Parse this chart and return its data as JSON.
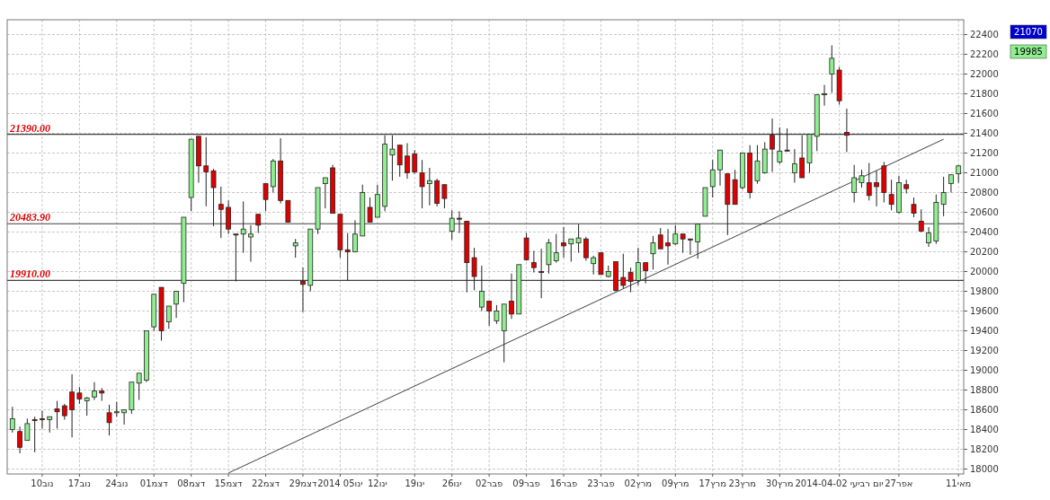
{
  "chart_data": {
    "type": "candlestick",
    "categories": [
      null,
      null,
      null,
      null,
      "10נוב",
      null,
      null,
      null,
      null,
      "17נוב",
      null,
      null,
      null,
      null,
      "24נוב",
      null,
      null,
      null,
      null,
      "01דצמ",
      null,
      null,
      null,
      null,
      "08דצמ",
      null,
      null,
      null,
      null,
      "15דצמ",
      null,
      null,
      null,
      null,
      "22דצמ",
      null,
      null,
      null,
      null,
      "29דצמ",
      null,
      null,
      null,
      null,
      "2014 05ינו",
      null,
      null,
      null,
      null,
      "12ינו",
      null,
      null,
      null,
      null,
      "19ינו",
      null,
      null,
      null,
      null,
      "26ינו",
      null,
      null,
      null,
      null,
      "02פבר",
      null,
      null,
      null,
      null,
      "09פבר",
      null,
      null,
      null,
      null,
      "16פבר",
      null,
      null,
      null,
      null,
      "23פבר",
      null,
      null,
      null,
      null,
      "02מרץ",
      null,
      null,
      null,
      null,
      "09מרץ",
      null,
      null,
      null,
      null,
      "17מרץ",
      null,
      null,
      null,
      "23מרץ",
      null,
      null,
      null,
      null,
      "30מרץ",
      null,
      null,
      null,
      null,
      null,
      null,
      null,
      "2014-04-02 יום רביעי",
      null,
      null,
      null,
      null,
      null,
      null,
      null,
      "27אפר",
      null,
      null,
      null,
      null,
      null,
      null,
      null,
      "11מאי"
    ],
    "ohlc": [
      [
        18400,
        18630,
        18370,
        18510
      ],
      [
        18380,
        18430,
        18160,
        18220
      ],
      [
        18290,
        18510,
        18290,
        18460
      ],
      [
        18500,
        18530,
        18170,
        18490
      ],
      [
        18510,
        18590,
        18410,
        18500
      ],
      [
        18500,
        18530,
        18370,
        18530
      ],
      [
        18610,
        18690,
        18410,
        18580
      ],
      [
        18640,
        18660,
        18500,
        18540
      ],
      [
        18780,
        18960,
        18320,
        18600
      ],
      [
        18770,
        18830,
        18660,
        18710
      ],
      [
        18690,
        18730,
        18540,
        18720
      ],
      [
        18730,
        18880,
        18700,
        18790
      ],
      [
        18790,
        18820,
        18690,
        18770
      ],
      [
        18570,
        18650,
        18340,
        18470
      ],
      [
        18570,
        18680,
        18530,
        18580
      ],
      [
        18570,
        18600,
        18450,
        18600
      ],
      [
        18600,
        18880,
        18560,
        18880
      ],
      [
        18870,
        18970,
        18700,
        18970
      ],
      [
        18900,
        19400,
        18880,
        19400
      ],
      [
        19440,
        19770,
        19400,
        19770
      ],
      [
        19840,
        19840,
        19300,
        19400
      ],
      [
        19490,
        19650,
        19420,
        19650
      ],
      [
        19670,
        19800,
        19530,
        19800
      ],
      [
        19880,
        20550,
        19690,
        20550
      ],
      [
        20750,
        21340,
        20610,
        21340
      ],
      [
        21370,
        21370,
        20900,
        21070
      ],
      [
        21070,
        21360,
        20660,
        21010
      ],
      [
        21020,
        21040,
        20460,
        20850
      ],
      [
        20680,
        20860,
        20340,
        20630
      ],
      [
        20650,
        20720,
        20380,
        20430
      ],
      [
        20380,
        20380,
        19900,
        20370
      ],
      [
        20380,
        20710,
        20190,
        20430
      ],
      [
        20350,
        20470,
        20100,
        20380
      ],
      [
        20580,
        20580,
        20390,
        20470
      ],
      [
        20890,
        20890,
        20610,
        20730
      ],
      [
        20860,
        21140,
        20800,
        21120
      ],
      [
        21120,
        21350,
        20690,
        20720
      ],
      [
        20720,
        20720,
        20500,
        20500
      ],
      [
        20260,
        20330,
        20140,
        20290
      ],
      [
        19900,
        20040,
        19590,
        19870
      ],
      [
        19860,
        20430,
        19800,
        20430
      ],
      [
        20430,
        20850,
        20380,
        20850
      ],
      [
        20890,
        20950,
        20640,
        20950
      ],
      [
        21050,
        21080,
        20590,
        20590
      ],
      [
        20580,
        20580,
        20140,
        20220
      ],
      [
        20220,
        20390,
        19910,
        20200
      ],
      [
        20200,
        20520,
        20200,
        20380
      ],
      [
        20360,
        20880,
        20360,
        20800
      ],
      [
        20650,
        20750,
        20500,
        20500
      ],
      [
        20550,
        20880,
        20550,
        20780
      ],
      [
        20660,
        21380,
        20610,
        21290
      ],
      [
        21180,
        21380,
        20920,
        21240
      ],
      [
        21280,
        21280,
        20960,
        21080
      ],
      [
        21170,
        21300,
        20940,
        21000
      ],
      [
        21190,
        21230,
        20990,
        21010
      ],
      [
        21000,
        21130,
        20640,
        20860
      ],
      [
        20890,
        21050,
        20670,
        20920
      ],
      [
        20920,
        20940,
        20660,
        20690
      ],
      [
        20880,
        20880,
        20640,
        20740
      ],
      [
        20410,
        20620,
        20320,
        20540
      ],
      [
        20540,
        20610,
        20390,
        20530
      ],
      [
        20510,
        20510,
        19790,
        20090
      ],
      [
        20140,
        20240,
        19810,
        19950
      ],
      [
        19640,
        20060,
        19600,
        19800
      ],
      [
        19700,
        19700,
        19450,
        19600
      ],
      [
        19500,
        19660,
        19470,
        19600
      ],
      [
        19400,
        19670,
        19080,
        19670
      ],
      [
        19700,
        19980,
        19520,
        19570
      ],
      [
        19570,
        20070,
        19570,
        20070
      ],
      [
        20340,
        20390,
        20110,
        20120
      ],
      [
        20090,
        20210,
        19990,
        20040
      ],
      [
        20000,
        20230,
        19730,
        19990
      ],
      [
        20070,
        20330,
        19980,
        20290
      ],
      [
        20110,
        20380,
        20090,
        20190
      ],
      [
        20290,
        20450,
        20140,
        20260
      ],
      [
        20280,
        20330,
        20100,
        20330
      ],
      [
        20290,
        20480,
        20190,
        20340
      ],
      [
        20330,
        20350,
        20110,
        20140
      ],
      [
        20080,
        20160,
        19970,
        20140
      ],
      [
        20190,
        20190,
        19970,
        19970
      ],
      [
        19950,
        20060,
        19940,
        20000
      ],
      [
        20100,
        20100,
        19800,
        19810
      ],
      [
        19940,
        20180,
        19830,
        19860
      ],
      [
        19990,
        20040,
        19790,
        19900
      ],
      [
        19910,
        20240,
        19860,
        20090
      ],
      [
        20090,
        20090,
        19880,
        20010
      ],
      [
        20180,
        20360,
        20020,
        20290
      ],
      [
        20370,
        20440,
        20230,
        20230
      ],
      [
        20290,
        20430,
        20070,
        20260
      ],
      [
        20280,
        20470,
        20270,
        20380
      ],
      [
        20380,
        20380,
        20190,
        20330
      ],
      [
        20330,
        20330,
        20170,
        20320
      ],
      [
        20300,
        20480,
        20130,
        20480
      ],
      [
        20560,
        20850,
        20560,
        20850
      ],
      [
        20860,
        21130,
        20750,
        21030
      ],
      [
        21030,
        21230,
        20870,
        21230
      ],
      [
        20990,
        20990,
        20370,
        20680
      ],
      [
        20930,
        21030,
        20680,
        20680
      ],
      [
        20850,
        21200,
        20830,
        21200
      ],
      [
        21200,
        21280,
        20740,
        20800
      ],
      [
        20920,
        21280,
        20890,
        21120
      ],
      [
        21000,
        21310,
        20990,
        21240
      ],
      [
        21380,
        21550,
        21010,
        21240
      ],
      [
        21110,
        21460,
        21090,
        21220
      ],
      [
        21230,
        21450,
        21220,
        21220
      ],
      [
        21000,
        21240,
        20900,
        21090
      ],
      [
        21150,
        21380,
        20950,
        20950
      ],
      [
        21100,
        21390,
        21000,
        21390
      ],
      [
        21370,
        21790,
        21220,
        21790
      ],
      [
        21790,
        21890,
        21680,
        21800
      ],
      [
        22000,
        22290,
        21810,
        22160
      ],
      [
        22040,
        22070,
        21690,
        21730
      ],
      [
        21410,
        21650,
        21210,
        21380
      ],
      [
        20800,
        21080,
        20700,
        20950
      ],
      [
        20900,
        21030,
        20850,
        20970
      ],
      [
        20900,
        21100,
        20720,
        20770
      ],
      [
        20900,
        21020,
        20660,
        20860
      ],
      [
        21070,
        21110,
        20700,
        20800
      ],
      [
        20780,
        20930,
        20620,
        20680
      ],
      [
        20600,
        20970,
        20590,
        20900
      ],
      [
        20880,
        20930,
        20790,
        20840
      ],
      [
        20680,
        20750,
        20550,
        20590
      ],
      [
        20510,
        20630,
        20400,
        20410
      ],
      [
        20290,
        20450,
        20250,
        20390
      ],
      [
        20310,
        20780,
        20280,
        20700
      ],
      [
        20680,
        20960,
        20560,
        20800
      ],
      [
        20890,
        20980,
        20800,
        20980
      ],
      [
        20990,
        21080,
        20900,
        21070
      ]
    ],
    "colors": [
      "#90ee90",
      "#e00000",
      "#90ee90",
      "#e00000",
      "#e00000",
      "#90ee90",
      "#e00000",
      "#e00000",
      "#e00000",
      "#e00000",
      "#90ee90",
      "#90ee90",
      "#e00000",
      "#e00000",
      "#90ee90",
      "#90ee90",
      "#90ee90",
      "#90ee90",
      "#90ee90",
      "#90ee90",
      "#e00000",
      "#90ee90",
      "#90ee90",
      "#90ee90",
      "#90ee90",
      "#e00000",
      "#e00000",
      "#e00000",
      "#e00000",
      "#e00000",
      "#e00000",
      "#90ee90",
      "#90ee90",
      "#e00000",
      "#e00000",
      "#90ee90",
      "#e00000",
      "#e00000",
      "#90ee90",
      "#e00000",
      "#90ee90",
      "#90ee90",
      "#90ee90",
      "#e00000",
      "#e00000",
      "#e00000",
      "#90ee90",
      "#90ee90",
      "#e00000",
      "#90ee90",
      "#90ee90",
      "#90ee90",
      "#e00000",
      "#e00000",
      "#e00000",
      "#e00000",
      "#90ee90",
      "#e00000",
      "#e00000",
      "#90ee90",
      "#e00000",
      "#e00000",
      "#e00000",
      "#90ee90",
      "#e00000",
      "#90ee90",
      "#90ee90",
      "#e00000",
      "#90ee90",
      "#e00000",
      "#e00000",
      "#e00000",
      "#90ee90",
      "#90ee90",
      "#e00000",
      "#90ee90",
      "#90ee90",
      "#e00000",
      "#90ee90",
      "#e00000",
      "#90ee90",
      "#e00000",
      "#e00000",
      "#e00000",
      "#90ee90",
      "#e00000",
      "#90ee90",
      "#e00000",
      "#e00000",
      "#90ee90",
      "#e00000",
      "#e00000",
      "#90ee90",
      "#90ee90",
      "#90ee90",
      "#90ee90",
      "#e00000",
      "#e00000",
      "#90ee90",
      "#e00000",
      "#90ee90",
      "#90ee90",
      "#e00000",
      "#90ee90",
      "#e00000",
      "#90ee90",
      "#e00000",
      "#90ee90",
      "#90ee90",
      "#90ee90",
      "#90ee90",
      "#e00000",
      "#e00000",
      "#90ee90",
      "#90ee90",
      "#e00000",
      "#e00000",
      "#e00000",
      "#e00000",
      "#90ee90",
      "#e00000",
      "#e00000",
      "#e00000",
      "#90ee90",
      "#90ee90",
      "#90ee90",
      "#90ee90",
      "#90ee90"
    ],
    "series": [
      {
        "type": "line",
        "color": "#404040",
        "values": [
          null,
          null,
          null,
          null,
          null,
          null,
          null,
          null,
          null,
          null,
          null,
          null,
          null,
          null,
          null,
          null,
          null,
          null,
          null,
          null,
          null,
          null,
          null,
          null,
          null,
          null,
          null,
          null,
          null,
          17960,
          null,
          null,
          null,
          null,
          null,
          null,
          null,
          null,
          null,
          null,
          null,
          null,
          null,
          null,
          null,
          null,
          null,
          null,
          null,
          null,
          null,
          null,
          null,
          null,
          null,
          null,
          null,
          null,
          null,
          null,
          null,
          null,
          null,
          null,
          null,
          null,
          null,
          null,
          null,
          null,
          null,
          null,
          null,
          null,
          null,
          null,
          null,
          null,
          null,
          null,
          null,
          null,
          null,
          null,
          null,
          null,
          null,
          null,
          null,
          null,
          null,
          null,
          null,
          null,
          null,
          null,
          null,
          null,
          null,
          null,
          null,
          null,
          null,
          null,
          null,
          null,
          null,
          null,
          null,
          null,
          null,
          null,
          null,
          null,
          null,
          null,
          null,
          null,
          null,
          null,
          null,
          null,
          null,
          null,
          null,
          21340,
          null,
          null
        ]
      }
    ],
    "ylim": [
      17950,
      22550
    ],
    "yticks": [
      18000,
      18200,
      18400,
      18600,
      18800,
      19000,
      19200,
      19400,
      19600,
      19800,
      20000,
      20200,
      20400,
      20600,
      20800,
      21000,
      21200,
      21400,
      21600,
      21800,
      22000,
      22200,
      22400
    ],
    "grid": true,
    "ref_lines": [
      {
        "axis": "y",
        "value": 21390,
        "label": "21390.00",
        "color": "#404040"
      },
      {
        "axis": "y",
        "value": 20483.9,
        "label": "20483.90",
        "color": "#404040"
      },
      {
        "axis": "y",
        "value": 19910,
        "label": "19910.00",
        "color": "#404040"
      }
    ],
    "annotations": [
      "21070",
      "19985"
    ]
  }
}
